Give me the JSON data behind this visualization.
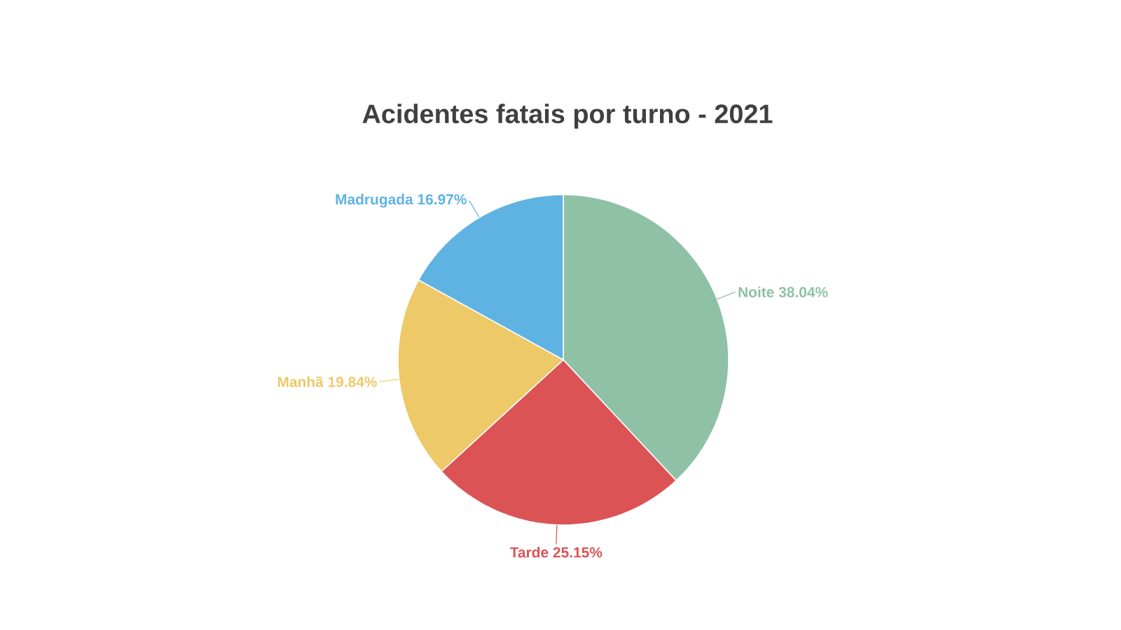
{
  "chart_data": {
    "type": "pie",
    "title": "Acidentes fatais  por turno - 2021",
    "categories": [
      "Noite",
      "Tarde",
      "Manhã",
      "Madrugada"
    ],
    "values": [
      38.04,
      25.15,
      19.84,
      16.97
    ],
    "value_labels": [
      "38.04%",
      "25.15%",
      "19.84%",
      "16.97%"
    ],
    "colors": [
      "#8fc1a7",
      "#dc5356",
      "#edc967",
      "#5fb3e3"
    ]
  }
}
